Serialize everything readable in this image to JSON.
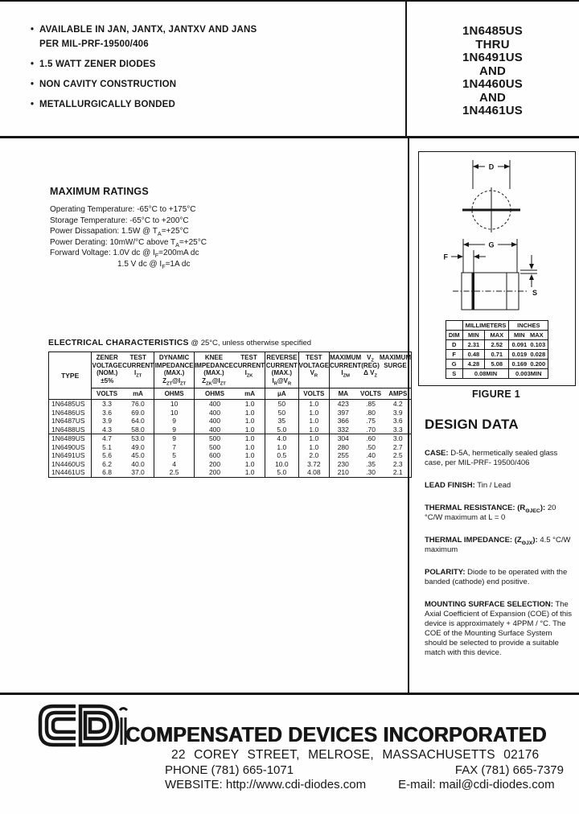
{
  "masthead": {
    "bullets": [
      {
        "lines": [
          "AVAILABLE IN JAN, JANTX, JANTXV AND JANS",
          "PER MIL-PRF-19500/406"
        ]
      },
      {
        "lines": [
          "1.5 WATT ZENER DIODES"
        ]
      },
      {
        "lines": [
          "NON CAVITY CONSTRUCTION"
        ]
      },
      {
        "lines": [
          "METALLURGICALLY BONDED"
        ]
      }
    ],
    "part_numbers": [
      "1N6485US",
      "THRU",
      "1N6491US",
      "AND",
      "1N4460US",
      "AND",
      "1N4461US"
    ]
  },
  "maximum_ratings": {
    "title": "MAXIMUM RATINGS",
    "lines": [
      "Operating Temperature: -65°C to +175°C",
      "Storage Temperature: -65°C to +200°C",
      "Power Dissapation: 1.5W @ T_{A}=+25°C",
      "Power Derating:  10mW/°C above T_{A}=+25°C",
      "Forward Voltage: 1.0V dc @ I_{F}=200mA dc"
    ],
    "forward_voltage_line2": "1.5 V dc @ I_{F}=1A dc"
  },
  "electrical": {
    "title": "ELECTRICAL CHARACTERISTICS",
    "condition": "@ 25°C, unless otherwise specified",
    "col_type": "TYPE",
    "groups": [
      {
        "cols": [
          [
            "ZENER",
            "VOLTAGE",
            "(NOM.)",
            "±5%"
          ],
          [
            "TEST",
            "CURRENT",
            "I_{ZT}"
          ]
        ]
      },
      {
        "cols": [
          [
            "DYNAMIC",
            "IMPEDANCE",
            "(MAX.)",
            "Z_{ZT}@I_{ZT}"
          ]
        ]
      },
      {
        "cols": [
          [
            "KNEE",
            "IMPEDANCE",
            "(MAX.)",
            "Z_{ZK}@I_{ZT}"
          ],
          [
            "TEST",
            "CURRENT",
            "I_{ZK}"
          ]
        ]
      },
      {
        "cols": [
          [
            "REVERSE",
            "CURRENT",
            "(MAX.)",
            "I_{R}@V_{R}"
          ]
        ]
      },
      {
        "cols": [
          [
            "TEST",
            "VOLTAGE",
            "V_{R}"
          ]
        ]
      },
      {
        "cols": [
          [
            "MAXIMUM",
            "CURRENT",
            "I_{ZM}"
          ],
          [
            "V_{Z} (REG)",
            "Δ V_{Z}"
          ],
          [
            "MAXIMUM",
            "SURGE"
          ]
        ]
      }
    ],
    "units": [
      "VOLTS",
      "mA",
      "OHMS",
      "OHMS",
      "mA",
      "μA",
      "VOLTS",
      "MA",
      "VOLTS",
      "AMPS"
    ],
    "row_groups": [
      [
        [
          "1N6485US",
          "3.3",
          "76.0",
          "10",
          "400",
          "1.0",
          "50",
          "1.0",
          "423",
          ".85",
          "4.2"
        ],
        [
          "1N6486US",
          "3.6",
          "69.0",
          "10",
          "400",
          "1.0",
          "50",
          "1.0",
          "397",
          ".80",
          "3.9"
        ],
        [
          "1N6487US",
          "3.9",
          "64.0",
          "9",
          "400",
          "1.0",
          "35",
          "1.0",
          "366",
          ".75",
          "3.6"
        ],
        [
          "1N6488US",
          "4.3",
          "58.0",
          "9",
          "400",
          "1.0",
          "5.0",
          "1.0",
          "332",
          ".70",
          "3.3"
        ]
      ],
      [
        [
          "1N6489US",
          "4.7",
          "53.0",
          "9",
          "500",
          "1.0",
          "4.0",
          "1.0",
          "304",
          ".60",
          "3.0"
        ],
        [
          "1N6490US",
          "5.1",
          "49.0",
          "7",
          "500",
          "1.0",
          "1.0",
          "1.0",
          "280",
          ".50",
          "2.7"
        ],
        [
          "1N6491US",
          "5.6",
          "45.0",
          "5",
          "600",
          "1.0",
          "0.5",
          "2.0",
          "255",
          ".40",
          "2.5"
        ],
        [
          "1N4460US",
          "6.2",
          "40.0",
          "4",
          "200",
          "1.0",
          "10.0",
          "3.72",
          "230",
          ".35",
          "2.3"
        ],
        [
          "1N4461US",
          "6.8",
          "37.0",
          "2.5",
          "200",
          "1.0",
          "5.0",
          "4.08",
          "210",
          ".30",
          "2.1"
        ]
      ]
    ]
  },
  "figure": {
    "caption": "FIGURE 1",
    "dim_labels": {
      "d": "D",
      "g": "G",
      "f": "F",
      "s": "S"
    },
    "dims_table": {
      "group_headers": [
        "MILLIMETERS",
        "INCHES"
      ],
      "col_headers": [
        "DIM",
        "MIN",
        "MAX",
        "MIN   MAX"
      ],
      "rows": [
        [
          "D",
          "2.31",
          "2.52",
          "0.091  0.103"
        ],
        [
          "F",
          "0.48",
          "0.71",
          "0.019  0.028"
        ],
        [
          "G",
          "4.28",
          "5.08",
          "0.169  0.200"
        ]
      ],
      "s_row": {
        "dim": "S",
        "mm": "0.08MIN",
        "inches": "0.003MIN"
      }
    }
  },
  "design_data": {
    "title": "DESIGN DATA",
    "items": [
      {
        "label": "CASE:",
        "text": "  D-5A, hermetically sealed glass case, per MIL-PRF- 19500/406"
      },
      {
        "label": "LEAD FINISH:",
        "text": " Tin / Lead"
      },
      {
        "label": "THERMAL RESISTANCE: (R_{ΘJEC}):",
        "text": " 20 °C/W maximum at L = 0"
      },
      {
        "label": "THERMAL IMPEDANCE: (Z_{ΘJX}):",
        "text": " 4.5 °C/W maximum"
      },
      {
        "label": "POLARITY:",
        "text": " Diode to be operated with the banded (cathode) end positive."
      },
      {
        "label": "MOUNTING SURFACE SELECTION:",
        "text": " The Axial Coefficient of Expansion (COE) of this device is approximately + 4PPM / °C. The COE of the Mounting Surface System should be selected to provide a suitable match with this device."
      }
    ]
  },
  "footer": {
    "company": "COMPENSATED DEVICES INCORPORATED",
    "address": "22 COREY STREET, MELROSE, MASSACHUSETTS 02176",
    "phone": "PHONE (781) 665-1071",
    "fax": "FAX (781) 665-7379",
    "website_label": "WEBSITE:",
    "website": "http://www.cdi-diodes.com",
    "email_label": "E-mail:",
    "email": "mail@cdi-diodes.com"
  }
}
